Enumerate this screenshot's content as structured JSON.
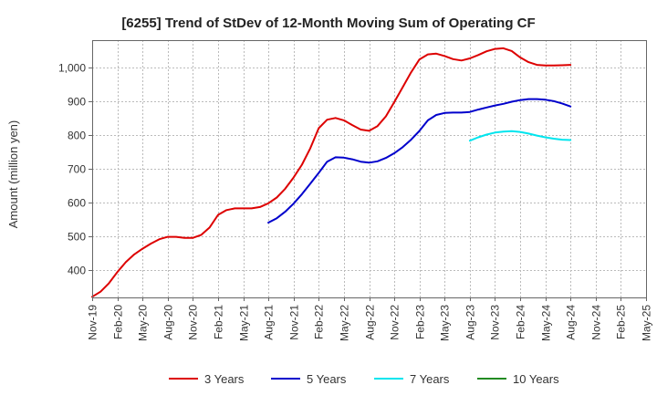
{
  "chart_data": {
    "type": "line",
    "title": "[6255]  Trend of StDev of 12-Month Moving Sum of Operating CF",
    "xlabel": "",
    "ylabel": "Amount (million yen)",
    "x": [
      "2019-11",
      "2019-12",
      "2020-01",
      "2020-02",
      "2020-03",
      "2020-04",
      "2020-05",
      "2020-06",
      "2020-07",
      "2020-08",
      "2020-09",
      "2020-10",
      "2020-11",
      "2020-12",
      "2021-01",
      "2021-02",
      "2021-03",
      "2021-04",
      "2021-05",
      "2021-06",
      "2021-07",
      "2021-08",
      "2021-09",
      "2021-10",
      "2021-11",
      "2021-12",
      "2022-01",
      "2022-02",
      "2022-03",
      "2022-04",
      "2022-05",
      "2022-06",
      "2022-07",
      "2022-08",
      "2022-09",
      "2022-10",
      "2022-11",
      "2022-12",
      "2023-01",
      "2023-02",
      "2023-03",
      "2023-04",
      "2023-05",
      "2023-06",
      "2023-07",
      "2023-08",
      "2023-09",
      "2023-10",
      "2023-11",
      "2023-12",
      "2024-01",
      "2024-02",
      "2024-03",
      "2024-04",
      "2024-05",
      "2024-06",
      "2024-07",
      "2024-08"
    ],
    "x_ticks": [
      "Nov-19",
      "Feb-20",
      "May-20",
      "Aug-20",
      "Nov-20",
      "Feb-21",
      "May-21",
      "Aug-21",
      "Nov-21",
      "Feb-22",
      "May-22",
      "Aug-22",
      "Nov-22",
      "Feb-23",
      "May-23",
      "Aug-23",
      "Nov-23",
      "Feb-24",
      "May-24",
      "Aug-24",
      "Nov-24",
      "Feb-25",
      "May-25"
    ],
    "x_range": [
      "2019-11",
      "2025-05"
    ],
    "ylim": [
      320,
      1080
    ],
    "y_ticks": [
      400,
      500,
      600,
      700,
      800,
      900,
      1000
    ],
    "y_tick_labels": [
      "400",
      "500",
      "600",
      "700",
      "800",
      "900",
      "1,000"
    ],
    "grid": true,
    "legend_position": "bottom",
    "series": [
      {
        "name": "3 Years",
        "color": "#dd0000",
        "values": [
          322,
          337,
          362,
          395,
          424,
          447,
          464,
          479,
          492,
          499,
          499,
          496,
          496,
          505,
          527,
          564,
          578,
          583,
          583,
          583,
          587,
          598,
          615,
          641,
          674,
          712,
          761,
          820,
          845,
          850,
          843,
          829,
          816,
          812,
          826,
          855,
          897,
          941,
          985,
          1023,
          1038,
          1040,
          1033,
          1024,
          1020,
          1026,
          1036,
          1047,
          1054,
          1056,
          1048,
          1029,
          1015,
          1007,
          1005,
          1005,
          1006,
          1007
        ]
      },
      {
        "name": "5 Years",
        "color": "#0000cc",
        "values": [
          null,
          null,
          null,
          null,
          null,
          null,
          null,
          null,
          null,
          null,
          null,
          null,
          null,
          null,
          null,
          null,
          null,
          null,
          null,
          null,
          null,
          541,
          554,
          573,
          597,
          625,
          656,
          688,
          721,
          734,
          733,
          728,
          721,
          718,
          722,
          732,
          746,
          764,
          786,
          812,
          843,
          859,
          865,
          866,
          866,
          868,
          875,
          881,
          887,
          892,
          898,
          903,
          906,
          906,
          904,
          900,
          893,
          884
        ]
      },
      {
        "name": "7 Years",
        "color": "#00e5ee",
        "values": [
          null,
          null,
          null,
          null,
          null,
          null,
          null,
          null,
          null,
          null,
          null,
          null,
          null,
          null,
          null,
          null,
          null,
          null,
          null,
          null,
          null,
          null,
          null,
          null,
          null,
          null,
          null,
          null,
          null,
          null,
          null,
          null,
          null,
          null,
          null,
          null,
          null,
          null,
          null,
          null,
          null,
          null,
          null,
          null,
          null,
          783,
          793,
          801,
          807,
          810,
          811,
          809,
          804,
          798,
          793,
          789,
          786,
          785
        ]
      },
      {
        "name": "10 Years",
        "color": "#228b22",
        "values": [
          null,
          null,
          null,
          null,
          null,
          null,
          null,
          null,
          null,
          null,
          null,
          null,
          null,
          null,
          null,
          null,
          null,
          null,
          null,
          null,
          null,
          null,
          null,
          null,
          null,
          null,
          null,
          null,
          null,
          null,
          null,
          null,
          null,
          null,
          null,
          null,
          null,
          null,
          null,
          null,
          null,
          null,
          null,
          null,
          null,
          null,
          null,
          null,
          null,
          null,
          null,
          null,
          null,
          null,
          null,
          null,
          null,
          null
        ]
      }
    ]
  }
}
